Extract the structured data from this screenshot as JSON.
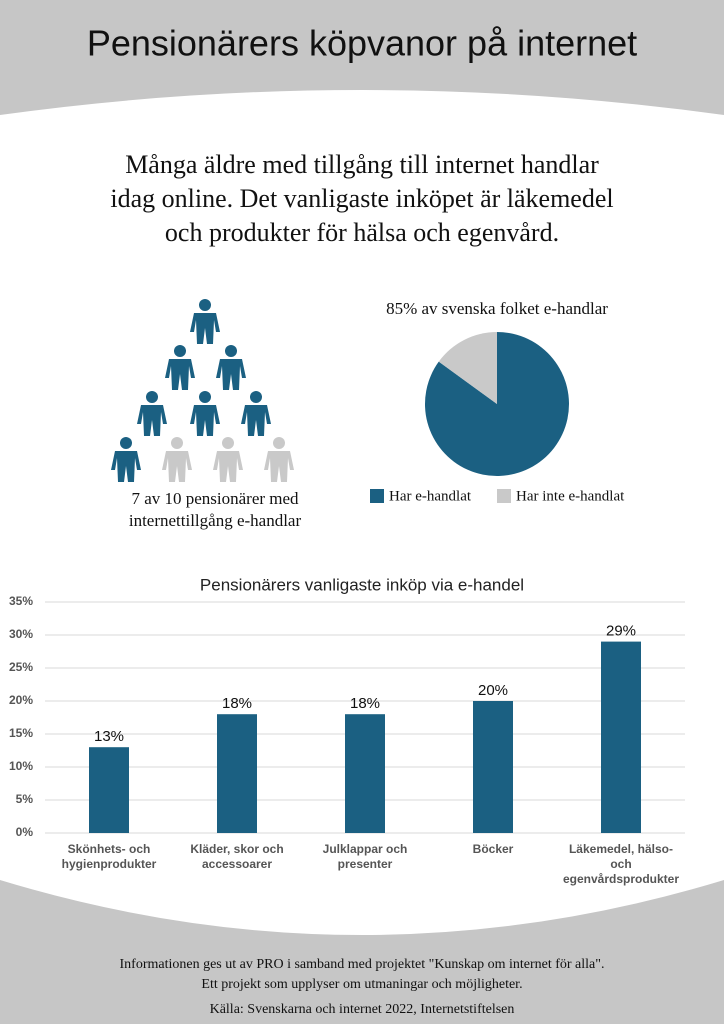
{
  "header": {
    "title": "Pensionärers köpvanor på internet"
  },
  "intro": [
    "Många äldre med tillgång till internet handlar",
    "idag online. Det vanligaste inköpet är läkemedel",
    "och produkter för hälsa och egenvård."
  ],
  "chart_data": [
    {
      "type": "pictogram",
      "caption": [
        "7 av 10 pensionärer med",
        "internettillgång e-handlar"
      ],
      "filled": 7,
      "total": 10,
      "color": "#1b6082",
      "empty_color": "#c9c9c9"
    },
    {
      "type": "pie",
      "title": "85% av svenska folket e-handlar",
      "categories": [
        "Har e-handlat",
        "Har inte e-handlat"
      ],
      "values": [
        85,
        15
      ],
      "colors": [
        "#1b6082",
        "#c9c9c9"
      ]
    },
    {
      "type": "bar",
      "title": "Pensionärers vanligaste inköp via e-handel",
      "categories": [
        "Skönhets- och hygienprodukter",
        "Kläder, skor och accessoarer",
        "Julklappar och presenter",
        "Böcker",
        "Läkemedel, hälso- och egenvårdsprodukter"
      ],
      "values": [
        13,
        18,
        18,
        20,
        29
      ],
      "value_labels": [
        "13%",
        "18%",
        "18%",
        "20%",
        "29%"
      ],
      "color": "#1b6082",
      "ylim": [
        0,
        35
      ],
      "yticks": [
        {
          "value": 0,
          "label": "0%"
        },
        {
          "value": 5,
          "label": "5%"
        },
        {
          "value": 10,
          "label": "10%"
        },
        {
          "value": 15,
          "label": "15%"
        },
        {
          "value": 20,
          "label": "20%"
        },
        {
          "value": 25,
          "label": "25%"
        },
        {
          "value": 30,
          "label": "30%"
        },
        {
          "value": 35,
          "label": "35%"
        }
      ],
      "grid": true
    }
  ],
  "footer": [
    "Informationen ges ut av PRO i samband med projektet \"Kunskap om internet för alla\".",
    "Ett projekt som upplyser om utmaningar och möjligheter.",
    "Källa: Svenskarna och internet 2022, Internetstiftelsen"
  ]
}
